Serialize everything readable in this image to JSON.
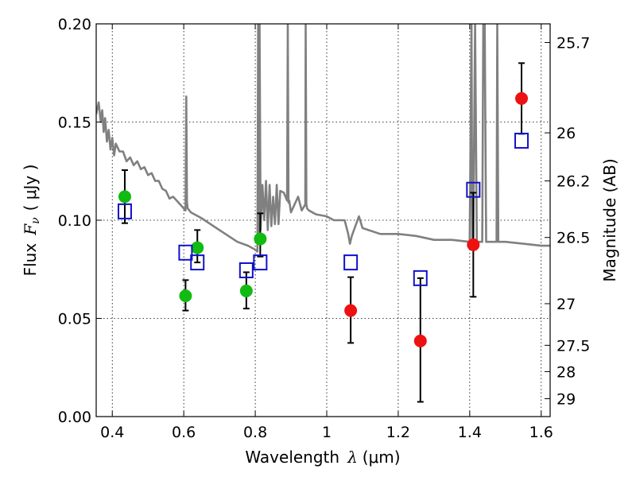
{
  "chart_data": {
    "type": "scatter",
    "xlabel": "Wavelength",
    "xlabel_symbol": "λ",
    "xlabel_unit": "(μm)",
    "ylabel": "Flux",
    "ylabel_symbol": "F",
    "ylabel_subscript": "ν",
    "ylabel_unit": "( μJy )",
    "y2label": "Magnitude (AB)",
    "xlim": [
      0.355,
      1.625
    ],
    "ylim": [
      0.0,
      0.2
    ],
    "grid": true,
    "x_ticks": [
      0.4,
      0.6,
      0.8,
      1.0,
      1.2,
      1.4,
      1.6
    ],
    "x_tick_labels": [
      "0.4",
      "0.6",
      "0.8",
      "1",
      "1.2",
      "1.4",
      "1.6"
    ],
    "y_ticks": [
      0.0,
      0.05,
      0.1,
      0.15,
      0.2
    ],
    "y_tick_labels": [
      "0.00",
      "0.05",
      "0.10",
      "0.15",
      "0.20"
    ],
    "y2_ticks": [
      {
        "flux": 0.1905,
        "label": "25.7"
      },
      {
        "flux": 0.1445,
        "label": "26"
      },
      {
        "flux": 0.12,
        "label": "26.2"
      },
      {
        "flux": 0.0912,
        "label": "26.5"
      },
      {
        "flux": 0.0575,
        "label": "27"
      },
      {
        "flux": 0.0363,
        "label": "27.5"
      },
      {
        "flux": 0.0229,
        "label": "28"
      },
      {
        "flux": 0.0091,
        "label": "29"
      }
    ],
    "series": [
      {
        "marker": "circle",
        "color": "#11bb11",
        "x": [
          0.435,
          0.605,
          0.638,
          0.775,
          0.814
        ],
        "y": [
          0.112,
          0.0615,
          0.086,
          0.064,
          0.0905
        ],
        "yerr_low": [
          0.0985,
          0.054,
          0.0785,
          0.055,
          0.0815
        ],
        "yerr_high": [
          0.1255,
          0.0695,
          0.095,
          0.0735,
          0.1035
        ]
      },
      {
        "marker": "circle",
        "color": "#ee1111",
        "x": [
          1.067,
          1.262,
          1.41,
          1.545
        ],
        "y": [
          0.054,
          0.0385,
          0.0875,
          0.162
        ],
        "yerr_low": [
          0.0375,
          0.0075,
          0.061,
          0.144
        ],
        "yerr_high": [
          0.071,
          0.0705,
          0.114,
          0.18
        ]
      },
      {
        "marker": "square-open",
        "color": "#1111cc",
        "x": [
          0.435,
          0.605,
          0.638,
          0.775,
          0.814,
          1.067,
          1.262,
          1.41,
          1.545
        ],
        "y": [
          0.1045,
          0.0835,
          0.0785,
          0.0745,
          0.0785,
          0.0785,
          0.0705,
          0.1155,
          0.1405
        ]
      },
      {
        "type": "line",
        "color": "#808080",
        "x": [
          0.355,
          0.362,
          0.368,
          0.372,
          0.376,
          0.38,
          0.385,
          0.39,
          0.395,
          0.4,
          0.405,
          0.41,
          0.415,
          0.42,
          0.43,
          0.44,
          0.45,
          0.46,
          0.47,
          0.48,
          0.49,
          0.5,
          0.51,
          0.52,
          0.53,
          0.54,
          0.55,
          0.56,
          0.57,
          0.58,
          0.59,
          0.6,
          0.605,
          0.607,
          0.609,
          0.611,
          0.62,
          0.65,
          0.7,
          0.75,
          0.78,
          0.8,
          0.806,
          0.808,
          0.81,
          0.812,
          0.815,
          0.82,
          0.825,
          0.83,
          0.835,
          0.84,
          0.845,
          0.85,
          0.855,
          0.86,
          0.865,
          0.87,
          0.88,
          0.889,
          0.891,
          0.893,
          0.895,
          0.9,
          0.91,
          0.92,
          0.93,
          0.94,
          0.941,
          0.943,
          0.945,
          0.95,
          0.97,
          1.0,
          1.02,
          1.05,
          1.06,
          1.065,
          1.07,
          1.08,
          1.09,
          1.1,
          1.15,
          1.2,
          1.25,
          1.3,
          1.35,
          1.4,
          1.405,
          1.407,
          1.41,
          1.415,
          1.42,
          1.435,
          1.438,
          1.442,
          1.446,
          1.45,
          1.47,
          1.475,
          1.477,
          1.48,
          1.5,
          1.55,
          1.6,
          1.625
        ],
        "y": [
          0.154,
          0.16,
          0.15,
          0.156,
          0.145,
          0.152,
          0.14,
          0.146,
          0.136,
          0.142,
          0.133,
          0.139,
          0.137,
          0.135,
          0.135,
          0.13,
          0.132,
          0.128,
          0.13,
          0.126,
          0.127,
          0.123,
          0.124,
          0.12,
          0.12,
          0.116,
          0.115,
          0.111,
          0.112,
          0.11,
          0.108,
          0.106,
          0.105,
          0.163,
          0.109,
          0.106,
          0.104,
          0.101,
          0.095,
          0.089,
          0.087,
          0.085,
          0.084,
          0.2,
          0.088,
          0.2,
          0.095,
          0.118,
          0.1,
          0.12,
          0.095,
          0.118,
          0.097,
          0.112,
          0.098,
          0.118,
          0.098,
          0.115,
          0.114,
          0.11,
          0.2,
          0.109,
          0.11,
          0.104,
          0.108,
          0.112,
          0.105,
          0.108,
          0.2,
          0.108,
          0.106,
          0.105,
          0.103,
          0.102,
          0.1,
          0.1,
          0.093,
          0.088,
          0.092,
          0.097,
          0.102,
          0.096,
          0.093,
          0.093,
          0.092,
          0.09,
          0.09,
          0.089,
          0.2,
          0.089,
          0.089,
          0.2,
          0.089,
          0.089,
          0.2,
          0.2,
          0.089,
          0.089,
          0.089,
          0.089,
          0.2,
          0.089,
          0.089,
          0.088,
          0.087,
          0.087
        ]
      }
    ]
  }
}
